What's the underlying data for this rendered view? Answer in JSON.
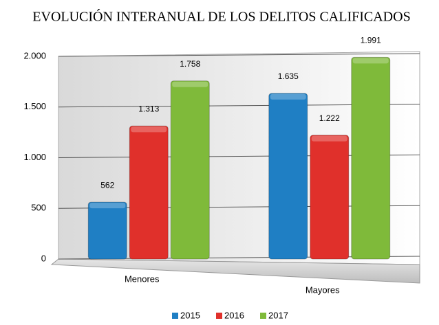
{
  "chart_data": {
    "type": "bar",
    "title": "EVOLUCIÓN INTERANUAL DE LOS DELITOS  CALIFICADOS",
    "categories": [
      "Menores",
      "Mayores"
    ],
    "series": [
      {
        "name": "2015",
        "color": "#1f7fc4",
        "values": [
          562,
          1635
        ],
        "value_labels": [
          "562",
          "1.635"
        ]
      },
      {
        "name": "2016",
        "color": "#e0302b",
        "values": [
          1313,
          1222
        ],
        "value_labels": [
          "1.313",
          "1.222"
        ]
      },
      {
        "name": "2017",
        "color": "#7fba3a",
        "values": [
          1758,
          1991
        ],
        "value_labels": [
          "1.758",
          "1.991"
        ]
      }
    ],
    "ylim": [
      0,
      2000
    ],
    "yticks": [
      0,
      500,
      {
        "value": 1000,
        "label": "1.000"
      },
      {
        "value": 1500,
        "label": "1.500"
      },
      {
        "value": 2000,
        "label": "2.000"
      }
    ],
    "grid": true,
    "legend": "bottom"
  }
}
